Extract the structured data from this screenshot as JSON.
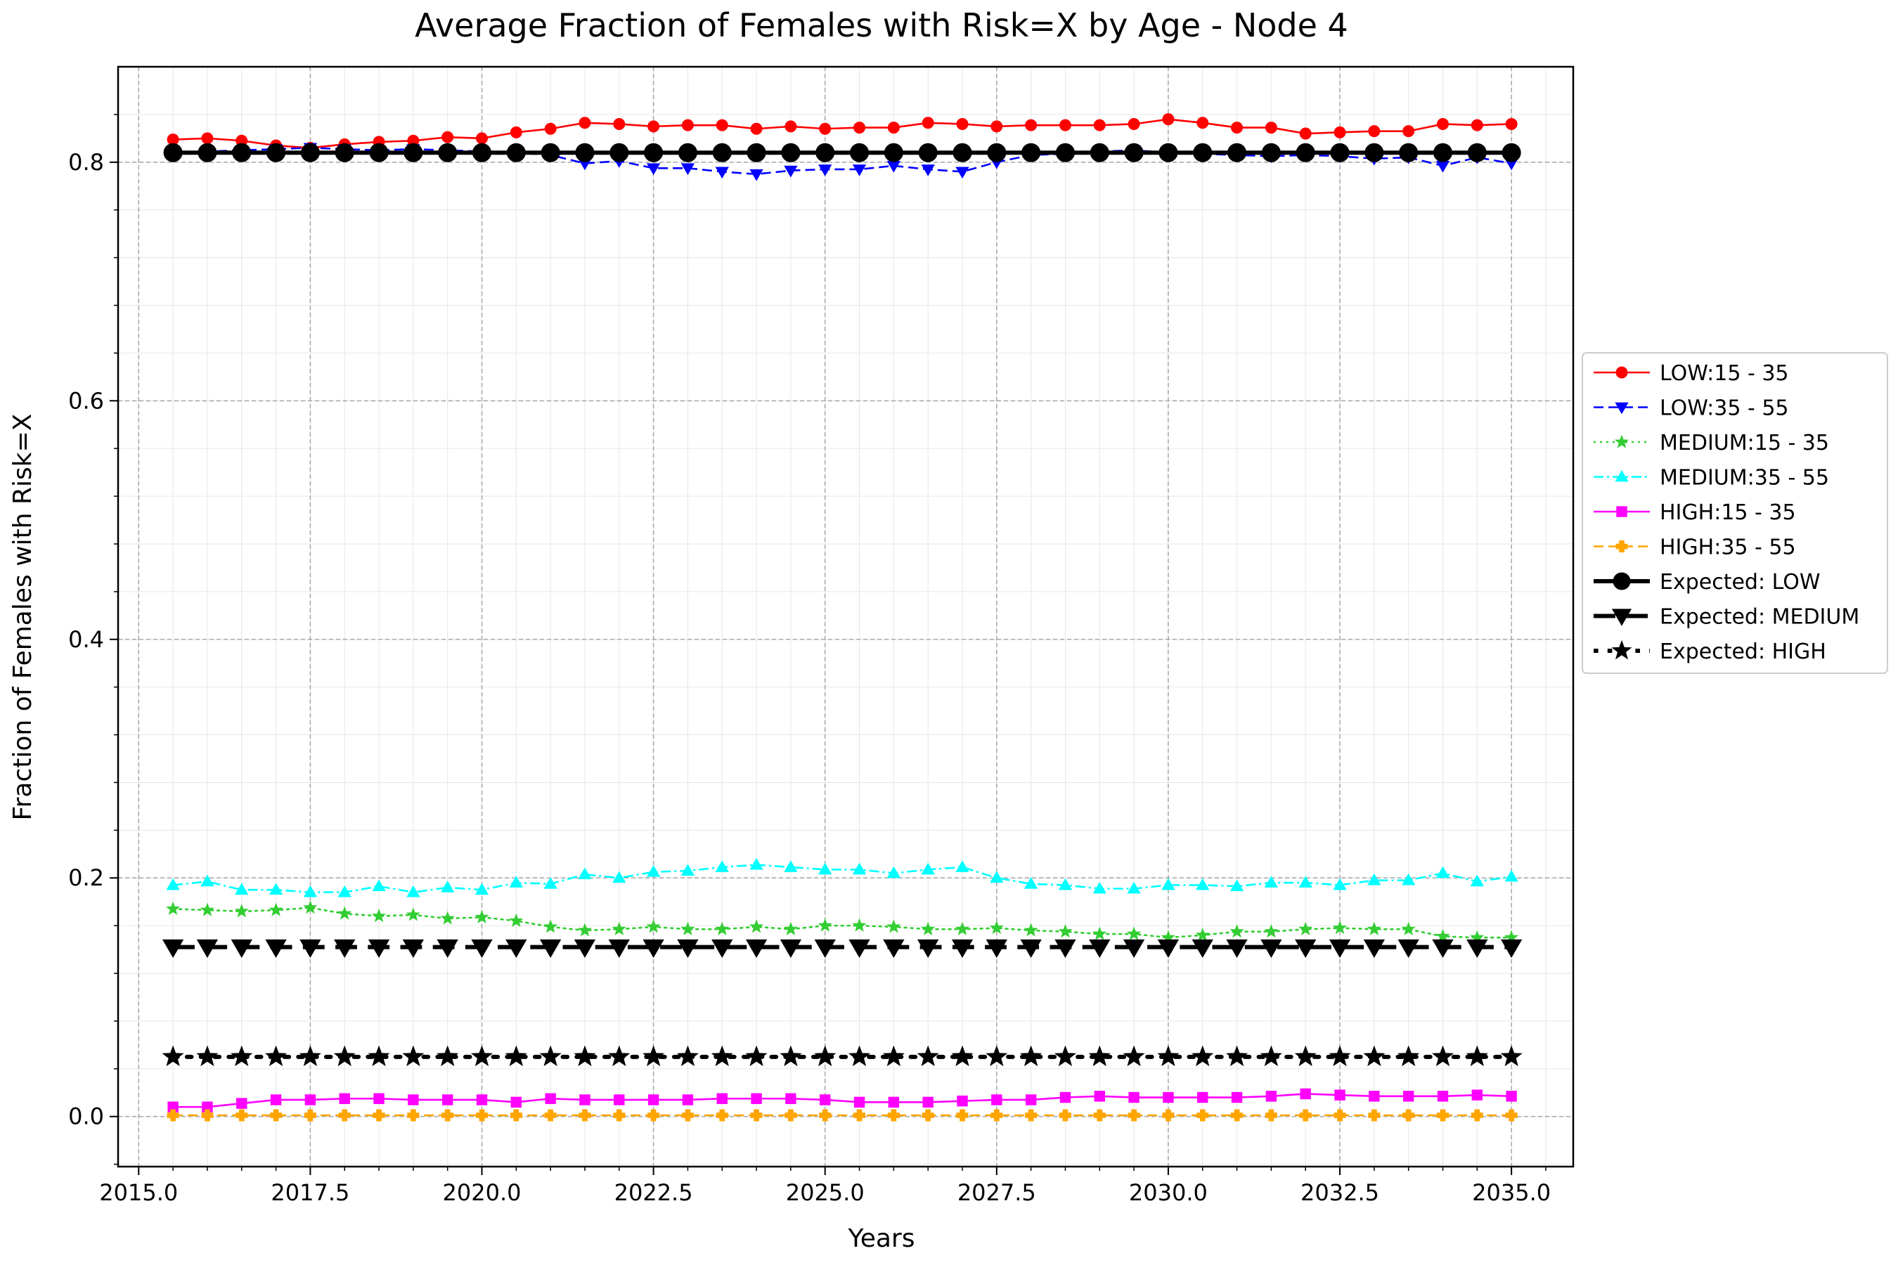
{
  "chart_data": {
    "type": "line",
    "title": "Average Fraction of Females with Risk=X by Age - Node 4",
    "xlabel": "Years",
    "ylabel": "Fraction of Females with Risk=X",
    "xlim": [
      2014.7,
      2035.9
    ],
    "ylim": [
      -0.042,
      0.88
    ],
    "xticks": [
      2015.0,
      2017.5,
      2020.0,
      2022.5,
      2025.0,
      2027.5,
      2030.0,
      2032.5,
      2035.0
    ],
    "xtick_labels": [
      "2015.0",
      "2017.5",
      "2020.0",
      "2022.5",
      "2025.0",
      "2027.5",
      "2030.0",
      "2032.5",
      "2035.0"
    ],
    "yticks": [
      0.0,
      0.2,
      0.4,
      0.6,
      0.8
    ],
    "ytick_labels": [
      "0.0",
      "0.2",
      "0.4",
      "0.6",
      "0.8"
    ],
    "grid": true,
    "legend_position": "right-outside",
    "x_start": 2015.5,
    "x_step": 0.5,
    "series": [
      {
        "name": "LOW:15 - 35",
        "color": "#ff0000",
        "dash": "solid",
        "marker": "circle",
        "values": [
          0.819,
          0.82,
          0.818,
          0.814,
          0.812,
          0.815,
          0.817,
          0.818,
          0.821,
          0.82,
          0.825,
          0.828,
          0.833,
          0.832,
          0.83,
          0.831,
          0.831,
          0.828,
          0.83,
          0.828,
          0.829,
          0.829,
          0.833,
          0.832,
          0.83,
          0.831,
          0.831,
          0.831,
          0.832,
          0.836,
          0.833,
          0.829,
          0.829,
          0.824,
          0.825,
          0.826,
          0.826,
          0.832,
          0.831,
          0.832
        ]
      },
      {
        "name": "LOW:35 - 55",
        "color": "#0000ff",
        "dash": "dashed",
        "marker": "triangle-down",
        "values": [
          0.808,
          0.809,
          0.81,
          0.811,
          0.812,
          0.811,
          0.81,
          0.811,
          0.81,
          0.809,
          0.808,
          0.806,
          0.799,
          0.801,
          0.795,
          0.795,
          0.792,
          0.79,
          0.793,
          0.794,
          0.794,
          0.797,
          0.794,
          0.792,
          0.8,
          0.806,
          0.807,
          0.809,
          0.81,
          0.808,
          0.807,
          0.806,
          0.805,
          0.806,
          0.805,
          0.803,
          0.804,
          0.797,
          0.804,
          0.799
        ]
      },
      {
        "name": "MEDIUM:15 - 35",
        "color": "#32cd32",
        "dash": "dotted",
        "marker": "star",
        "values": [
          0.174,
          0.173,
          0.172,
          0.173,
          0.175,
          0.17,
          0.168,
          0.169,
          0.166,
          0.167,
          0.164,
          0.159,
          0.156,
          0.157,
          0.159,
          0.157,
          0.157,
          0.159,
          0.157,
          0.16,
          0.16,
          0.159,
          0.157,
          0.157,
          0.158,
          0.156,
          0.155,
          0.153,
          0.153,
          0.15,
          0.152,
          0.155,
          0.155,
          0.157,
          0.158,
          0.157,
          0.157,
          0.151,
          0.15,
          0.15
        ]
      },
      {
        "name": "MEDIUM:35 - 55",
        "color": "#00ffff",
        "dash": "dashdot",
        "marker": "triangle-up",
        "values": [
          0.194,
          0.197,
          0.19,
          0.19,
          0.188,
          0.188,
          0.193,
          0.188,
          0.192,
          0.19,
          0.196,
          0.195,
          0.203,
          0.2,
          0.205,
          0.206,
          0.209,
          0.211,
          0.209,
          0.207,
          0.207,
          0.204,
          0.207,
          0.209,
          0.2,
          0.195,
          0.194,
          0.191,
          0.191,
          0.194,
          0.194,
          0.193,
          0.196,
          0.196,
          0.194,
          0.198,
          0.198,
          0.204,
          0.197,
          0.201
        ]
      },
      {
        "name": "HIGH:15 - 35",
        "color": "#ff00ff",
        "dash": "solid",
        "marker": "square",
        "values": [
          0.008,
          0.008,
          0.011,
          0.014,
          0.014,
          0.015,
          0.015,
          0.014,
          0.014,
          0.014,
          0.012,
          0.015,
          0.014,
          0.014,
          0.014,
          0.014,
          0.015,
          0.015,
          0.015,
          0.014,
          0.012,
          0.012,
          0.012,
          0.013,
          0.014,
          0.014,
          0.016,
          0.017,
          0.016,
          0.016,
          0.016,
          0.016,
          0.017,
          0.019,
          0.018,
          0.017,
          0.017,
          0.017,
          0.018,
          0.017
        ]
      },
      {
        "name": "HIGH:35 - 55",
        "color": "#ffa500",
        "dash": "dashed",
        "marker": "plus",
        "values": [
          0.001,
          0.001,
          0.001,
          0.001,
          0.001,
          0.001,
          0.001,
          0.001,
          0.001,
          0.001,
          0.001,
          0.001,
          0.001,
          0.001,
          0.001,
          0.001,
          0.001,
          0.001,
          0.001,
          0.001,
          0.001,
          0.001,
          0.001,
          0.001,
          0.001,
          0.001,
          0.001,
          0.001,
          0.001,
          0.001,
          0.001,
          0.001,
          0.001,
          0.001,
          0.001,
          0.001,
          0.001,
          0.001,
          0.001,
          0.001
        ]
      },
      {
        "name": "Expected: LOW",
        "color": "#000000",
        "dash": "solid",
        "marker": "circle",
        "bold": true,
        "constant": 0.808
      },
      {
        "name": "Expected: MEDIUM",
        "color": "#000000",
        "dash": "dashed",
        "marker": "triangle-down",
        "bold": true,
        "constant": 0.142
      },
      {
        "name": "Expected: HIGH",
        "color": "#000000",
        "dash": "dotted",
        "marker": "star",
        "bold": true,
        "constant": 0.05
      }
    ]
  }
}
